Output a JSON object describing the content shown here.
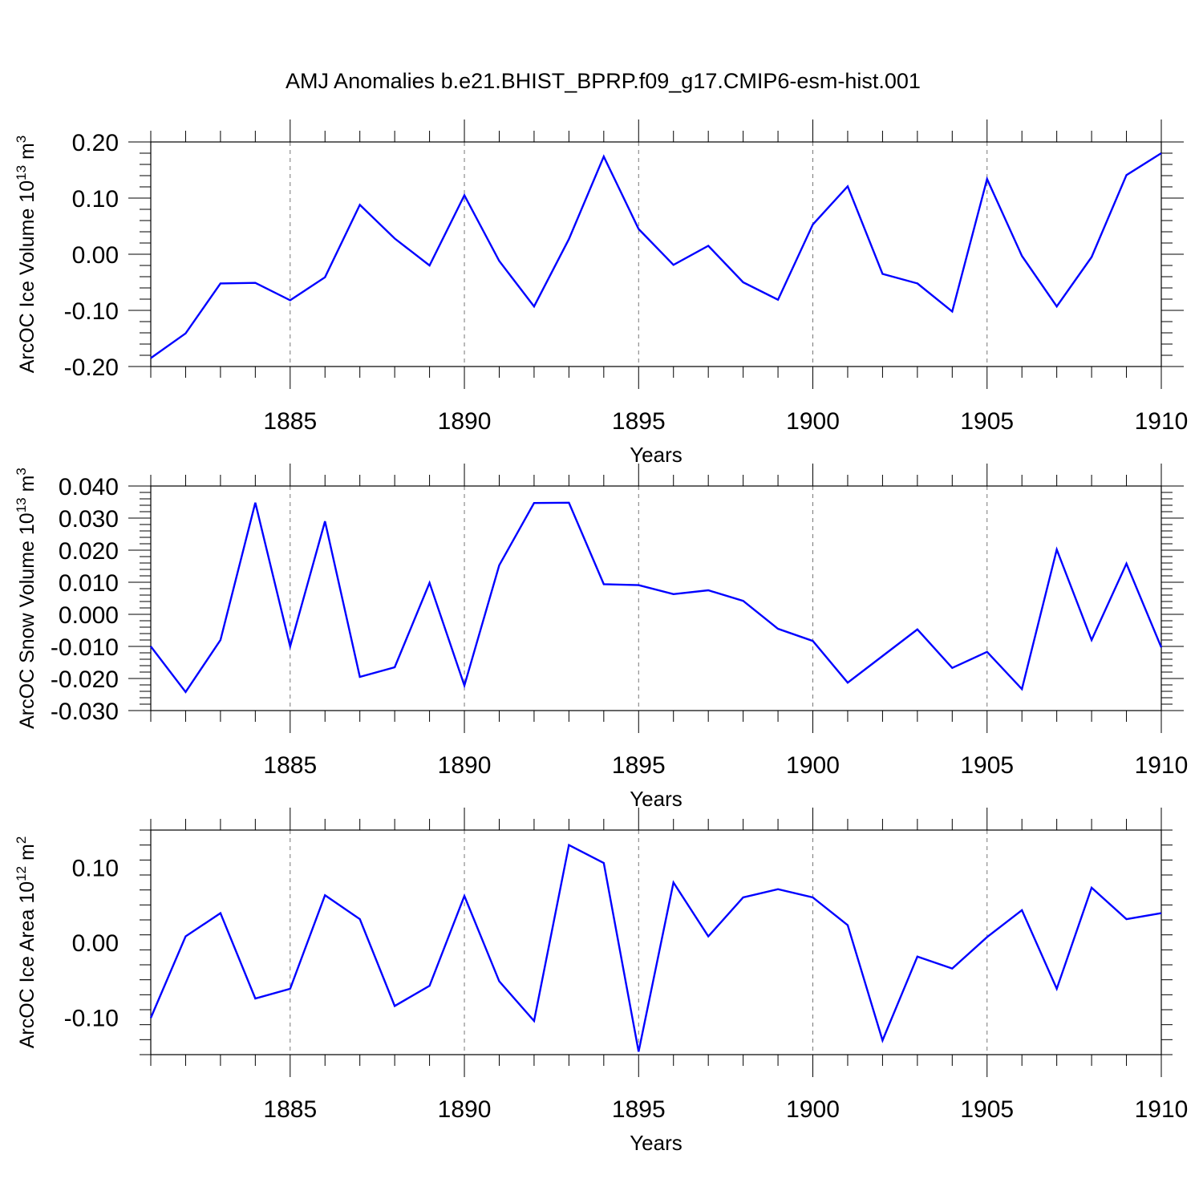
{
  "figure_title": "AMJ Anomalies b.e21.BHIST_BPRP.f09_g17.CMIP6-esm-hist.001",
  "chart_data": [
    {
      "type": "line",
      "title": "",
      "xlabel": "Years",
      "ylabel": "ArcOC Ice Volume 10",
      "ylabel_exp": "13",
      "ylabel_unit": " m",
      "ylabel_unit_exp": "3",
      "xlim": [
        1881,
        1910
      ],
      "ylim": [
        -0.2,
        0.2
      ],
      "xticks": [
        1885,
        1890,
        1895,
        1900,
        1905,
        1910
      ],
      "xtick_labels": [
        "1885",
        "1890",
        "1895",
        "1900",
        "1905",
        "1910"
      ],
      "yticks": [
        -0.2,
        -0.1,
        0.0,
        0.1,
        0.2
      ],
      "ytick_labels": [
        "-0.20",
        "-0.10",
        "0.00",
        "0.10",
        "0.20"
      ],
      "minor_y_step": 0.02,
      "grid_x_dashed": true,
      "x": [
        1881,
        1882,
        1883,
        1884,
        1885,
        1886,
        1887,
        1888,
        1889,
        1890,
        1891,
        1892,
        1893,
        1894,
        1895,
        1896,
        1897,
        1898,
        1899,
        1900,
        1901,
        1902,
        1903,
        1904,
        1905,
        1906,
        1907,
        1908,
        1909,
        1910
      ],
      "series": [
        {
          "name": "ArcOC Ice Volume",
          "color": "#0000ff",
          "values": [
            -0.185,
            -0.141,
            -0.052,
            -0.051,
            -0.082,
            -0.041,
            0.088,
            0.028,
            -0.02,
            0.105,
            -0.012,
            -0.093,
            0.027,
            0.174,
            0.045,
            -0.019,
            0.015,
            -0.05,
            -0.081,
            0.053,
            0.121,
            -0.035,
            -0.052,
            -0.102,
            0.134,
            -0.003,
            -0.093,
            -0.005,
            0.141,
            0.18
          ]
        }
      ]
    },
    {
      "type": "line",
      "title": "",
      "xlabel": "Years",
      "ylabel": "ArcOC Snow Volume 10",
      "ylabel_exp": "13",
      "ylabel_unit": " m",
      "ylabel_unit_exp": "3",
      "xlim": [
        1881,
        1910
      ],
      "ylim": [
        -0.03,
        0.04
      ],
      "xticks": [
        1885,
        1890,
        1895,
        1900,
        1905,
        1910
      ],
      "xtick_labels": [
        "1885",
        "1890",
        "1895",
        "1900",
        "1905",
        "1910"
      ],
      "yticks": [
        -0.03,
        -0.02,
        -0.01,
        0.0,
        0.01,
        0.02,
        0.03,
        0.04
      ],
      "ytick_labels": [
        "-0.030",
        "-0.020",
        "-0.010",
        "0.000",
        "0.010",
        "0.020",
        "0.030",
        "0.040"
      ],
      "minor_y_step": 0.002,
      "grid_x_dashed": true,
      "x": [
        1881,
        1882,
        1883,
        1884,
        1885,
        1886,
        1887,
        1888,
        1889,
        1890,
        1891,
        1892,
        1893,
        1894,
        1895,
        1896,
        1897,
        1898,
        1899,
        1900,
        1901,
        1902,
        1903,
        1904,
        1905,
        1906,
        1907,
        1908,
        1909,
        1910
      ],
      "series": [
        {
          "name": "ArcOC Snow Volume",
          "color": "#0000ff",
          "values": [
            -0.01,
            -0.0242,
            -0.008,
            0.0348,
            -0.01,
            0.029,
            -0.0195,
            -0.0165,
            0.0098,
            -0.0222,
            0.0153,
            0.0347,
            0.0348,
            0.0094,
            0.0091,
            0.0063,
            0.0075,
            0.0042,
            -0.0045,
            -0.0083,
            -0.0213,
            -0.013,
            -0.0047,
            -0.0167,
            -0.0117,
            -0.0233,
            0.0202,
            -0.008,
            0.0158,
            -0.0103
          ]
        }
      ]
    },
    {
      "type": "line",
      "title": "",
      "xlabel": "Years",
      "ylabel": "ArcOC Ice Area 10",
      "ylabel_exp": "12",
      "ylabel_unit": " m",
      "ylabel_unit_exp": "2",
      "xlim": [
        1881,
        1910
      ],
      "ylim": [
        -0.15,
        0.15
      ],
      "xticks": [
        1885,
        1890,
        1895,
        1900,
        1905,
        1910
      ],
      "xtick_labels": [
        "1885",
        "1890",
        "1895",
        "1900",
        "1905",
        "1910"
      ],
      "yticks": [
        -0.1,
        0.0,
        0.1
      ],
      "ytick_labels": [
        "-0.10",
        "0.00",
        "0.10"
      ],
      "minor_y_step": 0.02,
      "grid_x_dashed": true,
      "x": [
        1881,
        1882,
        1883,
        1884,
        1885,
        1886,
        1887,
        1888,
        1889,
        1890,
        1891,
        1892,
        1893,
        1894,
        1895,
        1896,
        1897,
        1898,
        1899,
        1900,
        1901,
        1902,
        1903,
        1904,
        1905,
        1906,
        1907,
        1908,
        1909,
        1910
      ],
      "series": [
        {
          "name": "ArcOC Ice Area",
          "color": "#0000ff",
          "values": [
            -0.101,
            0.008,
            0.039,
            -0.075,
            -0.062,
            0.063,
            0.031,
            -0.085,
            -0.058,
            0.062,
            -0.052,
            -0.105,
            0.13,
            0.106,
            -0.146,
            0.08,
            0.008,
            0.06,
            0.071,
            0.06,
            0.023,
            -0.131,
            -0.019,
            -0.035,
            0.007,
            0.043,
            -0.062,
            0.073,
            0.031,
            0.039
          ]
        }
      ]
    }
  ]
}
